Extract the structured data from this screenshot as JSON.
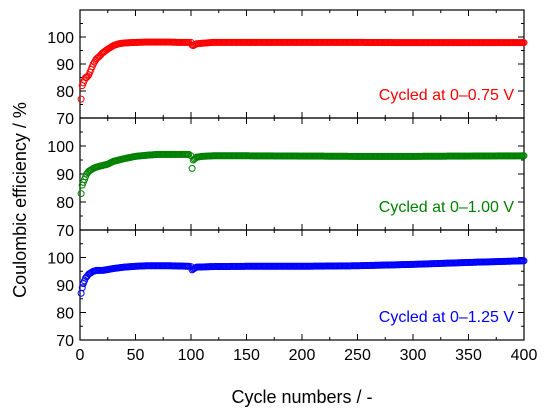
{
  "chart_data": {
    "type": "scatter",
    "xlabel": "Cycle numbers / -",
    "ylabel": "Coulombic efficiency / %",
    "xlim": [
      0,
      400
    ],
    "xticks": [
      0,
      50,
      100,
      150,
      200,
      250,
      300,
      350,
      400
    ],
    "panels": [
      {
        "annotation": "Cycled at 0–0.75 V",
        "color": "#ff0000",
        "ylim": [
          70,
          110
        ],
        "yticks": [
          70,
          80,
          90,
          100
        ],
        "series": {
          "x": [
            1,
            2,
            3,
            4,
            5,
            6,
            8,
            10,
            12,
            15,
            18,
            20,
            25,
            30,
            35,
            40,
            50,
            60,
            70,
            80,
            90,
            98,
            100,
            101,
            102,
            105,
            120,
            150,
            200,
            250,
            300,
            350,
            400
          ],
          "y": [
            77,
            82,
            83,
            84,
            85,
            85,
            86,
            88,
            90,
            92,
            93,
            94,
            95.5,
            96.8,
            97.5,
            97.8,
            98,
            98.1,
            98.1,
            98.1,
            98,
            98,
            98,
            97,
            96.8,
            97.5,
            98,
            98,
            98,
            98,
            97.9,
            97.9,
            97.9
          ]
        }
      },
      {
        "annotation": "Cycled at 0–1.00 V",
        "color": "#008000",
        "ylim": [
          70,
          110
        ],
        "yticks": [
          70,
          80,
          90,
          100
        ],
        "series": {
          "x": [
            1,
            2,
            3,
            4,
            5,
            6,
            8,
            10,
            12,
            15,
            20,
            25,
            30,
            40,
            50,
            60,
            70,
            80,
            90,
            98,
            100,
            101,
            102,
            105,
            110,
            120,
            150,
            200,
            250,
            300,
            350,
            400
          ],
          "y": [
            83,
            86,
            87,
            88,
            89,
            90,
            91,
            91.5,
            92,
            92.5,
            93,
            93.5,
            94.5,
            95.5,
            96.3,
            96.7,
            97,
            97,
            97,
            97,
            96.5,
            92,
            95,
            96,
            96.3,
            96.5,
            96.5,
            96.4,
            96.3,
            96.3,
            96.4,
            96.5
          ]
        }
      },
      {
        "annotation": "Cycled at 0–1.25 V",
        "color": "#0000ff",
        "ylim": [
          70,
          110
        ],
        "yticks": [
          70,
          80,
          90,
          100
        ],
        "series": {
          "x": [
            1,
            2,
            3,
            4,
            5,
            6,
            8,
            10,
            12,
            15,
            20,
            25,
            30,
            40,
            50,
            60,
            70,
            80,
            90,
            98,
            100,
            101,
            102,
            105,
            120,
            150,
            200,
            250,
            300,
            350,
            400
          ],
          "y": [
            87,
            89,
            90.5,
            91.5,
            92.5,
            93,
            94,
            94.5,
            95,
            95.3,
            95.3,
            95.6,
            96,
            96.5,
            96.8,
            97,
            97,
            97,
            96.9,
            96.8,
            96.7,
            95.5,
            95.8,
            96.5,
            96.7,
            96.8,
            96.8,
            97,
            97.5,
            98.2,
            98.8
          ]
        }
      }
    ]
  }
}
